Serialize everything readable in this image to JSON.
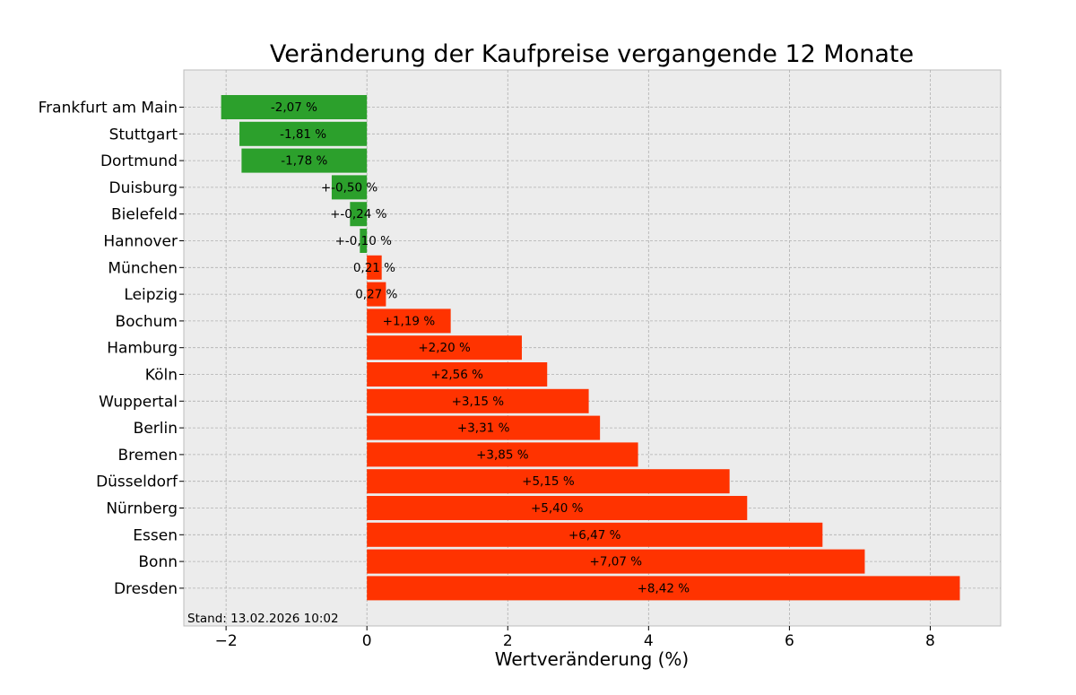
{
  "chart_data": {
    "type": "bar",
    "orientation": "horizontal",
    "title": "Veränderung der Kaufpreise vergangende 12 Monate",
    "xlabel": "Wertveränderung (%)",
    "ylabel": "",
    "xlim": [
      -2.6,
      9.0
    ],
    "xticks": [
      -2,
      0,
      2,
      4,
      6,
      8
    ],
    "xtick_labels": [
      "−2",
      "0",
      "2",
      "4",
      "6",
      "8"
    ],
    "grid": true,
    "colors": {
      "negative": "#2ca02c",
      "positive": "#ff3300",
      "plot_background": "#ececec",
      "grid": "#b0b0b0"
    },
    "categories": [
      "Frankfurt am Main",
      "Stuttgart",
      "Dortmund",
      "Duisburg",
      "Bielefeld",
      "Hannover",
      "München",
      "Leipzig",
      "Bochum",
      "Hamburg",
      "Köln",
      "Wuppertal",
      "Berlin",
      "Bremen",
      "Düsseldorf",
      "Nürnberg",
      "Essen",
      "Bonn",
      "Dresden"
    ],
    "values": [
      -2.07,
      -1.81,
      -1.78,
      -0.5,
      -0.24,
      -0.1,
      0.21,
      0.27,
      1.19,
      2.2,
      2.56,
      3.15,
      3.31,
      3.85,
      5.15,
      5.4,
      6.47,
      7.07,
      8.42
    ],
    "data_labels": [
      "-2,07 %",
      "-1,81 %",
      "-1,78 %",
      "+-0,50 %",
      "+-0,24 %",
      "+-0,10 %",
      "0,21 %",
      "0,27 %",
      "+1,19 %",
      "+2,20 %",
      "+2,56 %",
      "+3,15 %",
      "+3,31 %",
      "+3,85 %",
      "+5,15 %",
      "+5,40 %",
      "+6,47 %",
      "+7,07 %",
      "+8,42 %"
    ],
    "annotation": "Stand: 13.02.2026 10:02"
  }
}
